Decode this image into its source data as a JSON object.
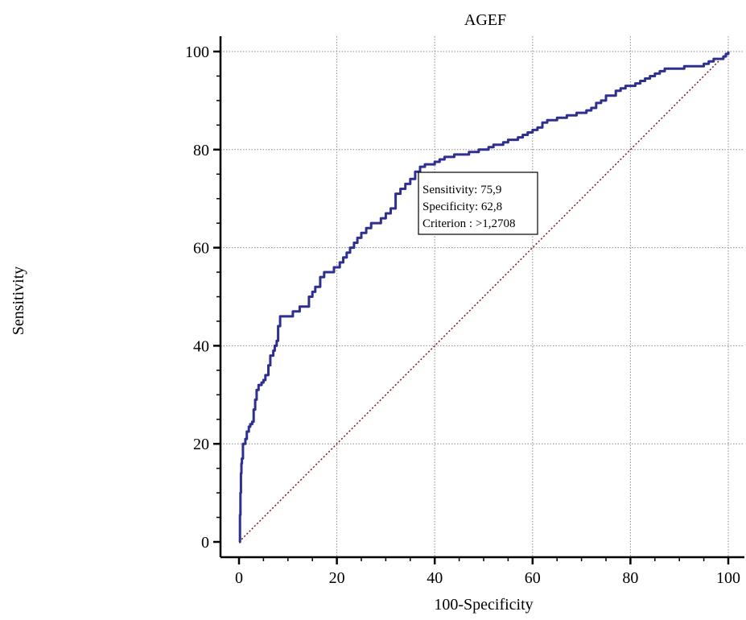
{
  "chart_data": {
    "type": "line",
    "title": "AGEF",
    "xlabel": "100-Specificity",
    "ylabel": "Sensitivity",
    "xlim": [
      0,
      100
    ],
    "ylim": [
      0,
      100
    ],
    "x_ticks": [
      0,
      20,
      40,
      60,
      80,
      100
    ],
    "y_ticks": [
      0,
      20,
      40,
      60,
      80,
      100
    ],
    "x_tick_labels": [
      "0",
      "20",
      "40",
      "60",
      "80",
      "100"
    ],
    "y_tick_labels": [
      "0",
      "20",
      "40",
      "60",
      "80",
      "100"
    ],
    "grid": true,
    "legend": "none",
    "series": [
      {
        "role": "roc-curve",
        "color": "#2e2f8f",
        "x": [
          0,
          0.2,
          0.3,
          0.4,
          0.5,
          0.6,
          0.8,
          1.0,
          1.3,
          1.6,
          2.0,
          2.3,
          2.7,
          3.0,
          3.3,
          3.6,
          4.0,
          4.6,
          5.0,
          5.4,
          6.0,
          6.4,
          7.0,
          7.3,
          7.7,
          8.0,
          8.4,
          9.0,
          10.0,
          11.0,
          11.6,
          12.4,
          13.4,
          14.3,
          15.0,
          15.6,
          16.0,
          16.6,
          17.4,
          18.4,
          19.4,
          20.0,
          20.6,
          21.3,
          22.0,
          22.7,
          23.5,
          24.2,
          25.0,
          26.0,
          27.0,
          28.0,
          29.0,
          30.0,
          31.0,
          32.0,
          33.0,
          34.0,
          35.0,
          36.0,
          37.0,
          38.0,
          39.0,
          40.0,
          41.0,
          42.0,
          43.0,
          44.0,
          45.0,
          46.0,
          47.0,
          48.0,
          49.0,
          50.0,
          51.0,
          52.0,
          53.0,
          54.0,
          55.0,
          56.0,
          57.0,
          58.0,
          59.0,
          60.0,
          61.0,
          62.0,
          63.0,
          64.0,
          65.0,
          66.0,
          67.0,
          68.0,
          69.0,
          70.0,
          71.0,
          72.0,
          73.0,
          74.0,
          75.0,
          76.0,
          77.0,
          78.0,
          79.0,
          80.0,
          81.0,
          82.0,
          83.0,
          84.0,
          85.0,
          86.0,
          87.0,
          88.0,
          89.0,
          90.0,
          91.0,
          92.0,
          93.0,
          94.0,
          95.0,
          96.0,
          97.0,
          98.0,
          99.0,
          99.5,
          100
        ],
        "y": [
          0,
          5.5,
          10,
          14,
          16,
          17,
          20,
          20,
          21,
          22.5,
          23.5,
          24,
          24.5,
          27,
          29,
          31,
          32,
          32.5,
          33,
          34,
          36,
          38,
          39,
          40,
          41,
          44,
          46,
          46,
          46,
          47,
          47,
          48,
          48,
          50,
          51,
          52,
          52,
          54,
          55,
          55,
          56,
          56,
          57,
          58,
          59,
          60,
          61,
          62,
          63,
          64,
          65,
          65,
          66,
          67,
          68,
          71,
          72,
          73,
          74,
          75.5,
          76.5,
          77,
          77,
          77.5,
          78,
          78.5,
          78.5,
          79,
          79,
          79,
          79.5,
          79.5,
          80,
          80,
          80.5,
          81,
          81,
          81.5,
          82,
          82,
          82.5,
          83,
          83.5,
          84,
          84.5,
          85.5,
          86,
          86,
          86.5,
          86.5,
          87,
          87,
          87.5,
          87.5,
          88,
          88.5,
          89.5,
          90,
          91,
          91,
          92,
          92.5,
          93,
          93,
          93.5,
          94,
          94.5,
          95,
          95.5,
          96,
          96.5,
          96.5,
          96.5,
          96.5,
          97,
          97,
          97,
          97,
          97.5,
          98,
          98.5,
          98.5,
          99,
          99.5,
          100
        ]
      },
      {
        "role": "reference-diagonal",
        "color": "#7a1a1a",
        "x": [
          0,
          100
        ],
        "y": [
          0,
          100
        ]
      }
    ],
    "annotation": {
      "lines": [
        "Sensitivity: 75,9",
        "Specificity: 62,8",
        "Criterion : >1,2708"
      ],
      "anchor": {
        "x": 37.2,
        "y": 75.9
      }
    }
  }
}
